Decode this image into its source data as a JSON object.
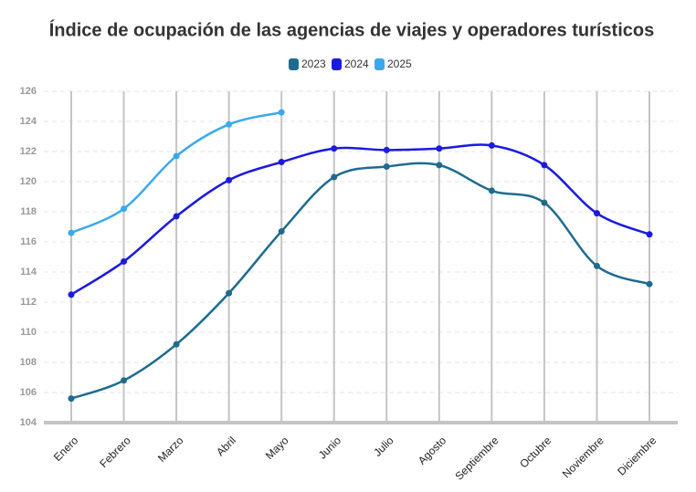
{
  "chart_data": {
    "type": "line",
    "title": "Índice de ocupación de las agencias de viajes y operadores turísticos",
    "categories": [
      "Enero",
      "Febrero",
      "Marzo",
      "Abril",
      "Mayo",
      "Junio",
      "Julio",
      "Agosto",
      "Septiembre",
      "Octubre",
      "Noviembre",
      "Diciembre"
    ],
    "series": [
      {
        "name": "2023",
        "color": "#1f6b8f",
        "values": [
          105.6,
          106.8,
          109.2,
          112.6,
          116.7,
          120.3,
          121.0,
          121.1,
          119.4,
          118.6,
          114.4,
          113.2
        ]
      },
      {
        "name": "2024",
        "color": "#1a1ae0",
        "values": [
          112.5,
          114.7,
          117.7,
          120.1,
          121.3,
          122.2,
          122.1,
          122.2,
          122.4,
          121.1,
          117.9,
          116.5
        ]
      },
      {
        "name": "2025",
        "color": "#3aa9ec",
        "values": [
          116.6,
          118.2,
          121.7,
          123.8,
          124.6,
          null,
          null,
          null,
          null,
          null,
          null,
          null
        ]
      }
    ],
    "ylim": [
      104,
      126
    ],
    "yticks": [
      104,
      106,
      108,
      110,
      112,
      114,
      116,
      118,
      120,
      122,
      124,
      126
    ],
    "grid": true,
    "legend": "top"
  }
}
